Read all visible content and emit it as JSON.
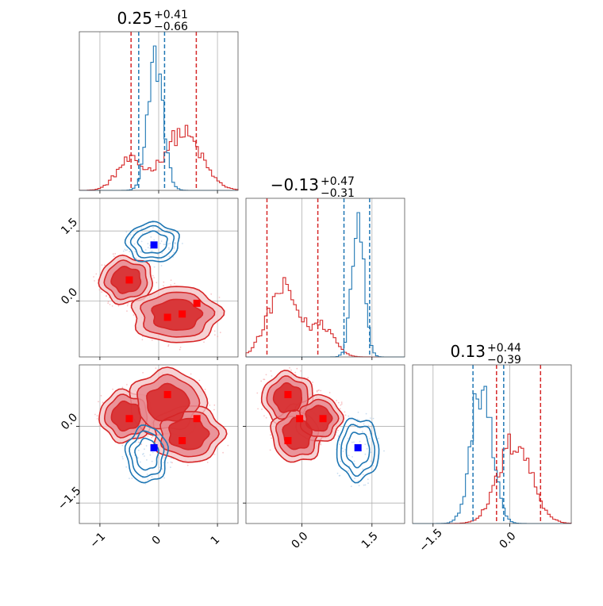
{
  "chart_data": {
    "type": "corner",
    "colors": {
      "model_a": "#d62728",
      "model_b": "#1f77b4",
      "marker_a": "#ff0000",
      "marker_b": "#0000ff"
    },
    "grid": true,
    "titles": [
      {
        "value": "0.25",
        "plus": "+0.41",
        "minus": "−0.66"
      },
      {
        "value": "−0.13",
        "plus": "+0.47",
        "minus": "−0.31"
      },
      {
        "value": "0.13",
        "plus": "+0.44",
        "minus": "−0.39"
      }
    ],
    "param_ranges": [
      [
        -1.35,
        1.35
      ],
      [
        -1.2,
        2.2
      ],
      [
        -1.9,
        1.2
      ]
    ],
    "ticks": {
      "p0": {
        "values": [
          -1,
          0,
          1
        ],
        "labels": [
          "−1",
          "0",
          "1"
        ]
      },
      "p1": {
        "values": [
          0.0,
          1.5
        ],
        "labels": [
          "0.0",
          "1.5"
        ]
      },
      "p2": {
        "values": [
          -1.5,
          0.0
        ],
        "labels": [
          "−1.5",
          "0.0"
        ]
      }
    },
    "hist_dashed_lines": {
      "p0": {
        "model_a": [
          -0.47,
          0.64
        ],
        "model_b": [
          -0.34,
          0.1
        ]
      },
      "p1": {
        "model_a": [
          -0.75,
          0.34
        ],
        "model_b": [
          0.9,
          1.45
        ]
      },
      "p2": {
        "model_a": [
          -0.26,
          0.6
        ],
        "model_b": [
          -0.72,
          -0.12
        ]
      }
    },
    "histograms": {
      "p0": {
        "model_a": {
          "peaks": [
            {
              "mu": -0.5,
              "sd": 0.22,
              "w": 0.28
            },
            {
              "mu": 0.4,
              "sd": 0.32,
              "w": 0.55
            }
          ],
          "height": 0.45
        },
        "model_b": {
          "peaks": [
            {
              "mu": -0.05,
              "sd": 0.13,
              "w": 1.0
            }
          ],
          "height": 1.0
        }
      },
      "p1": {
        "model_a": {
          "peaks": [
            {
              "mu": -0.4,
              "sd": 0.33,
              "w": 0.8
            },
            {
              "mu": 0.45,
              "sd": 0.25,
              "w": 0.35
            }
          ],
          "height": 0.55
        },
        "model_b": {
          "peaks": [
            {
              "mu": 1.2,
              "sd": 0.13,
              "w": 1.0
            }
          ],
          "height": 1.0
        }
      },
      "p2": {
        "model_a": {
          "peaks": [
            {
              "mu": 0.1,
              "sd": 0.32,
              "w": 1.0
            }
          ],
          "height": 0.62
        },
        "model_b": {
          "peaks": [
            {
              "mu": -0.55,
              "sd": 0.2,
              "w": 1.0
            }
          ],
          "height": 0.95
        }
      }
    },
    "markers": {
      "p0_p1": {
        "model_a": [
          [
            -0.5,
            0.45
          ],
          [
            0.15,
            -0.35
          ],
          [
            0.4,
            -0.28
          ],
          [
            0.65,
            -0.05
          ]
        ],
        "model_b": [
          [
            -0.08,
            1.2
          ]
        ]
      },
      "p0_p2": {
        "model_a": [
          [
            -0.5,
            0.15
          ],
          [
            0.15,
            0.62
          ],
          [
            0.4,
            -0.28
          ],
          [
            0.65,
            0.15
          ]
        ],
        "model_b": [
          [
            -0.08,
            -0.42
          ]
        ]
      },
      "p1_p2": {
        "model_a": [
          [
            -0.3,
            0.62
          ],
          [
            -0.3,
            -0.28
          ],
          [
            -0.05,
            0.15
          ],
          [
            0.45,
            0.15
          ]
        ],
        "model_b": [
          [
            1.2,
            -0.42
          ]
        ]
      }
    },
    "blobs": {
      "p0_p1": {
        "model_a": [
          {
            "cx": -0.55,
            "cy": 0.45,
            "rx": 0.45,
            "ry": 0.5
          },
          {
            "cx": 0.3,
            "cy": -0.3,
            "rx": 0.75,
            "ry": 0.6
          }
        ],
        "model_b": [
          {
            "cx": -0.1,
            "cy": 1.25,
            "rx": 0.45,
            "ry": 0.42
          }
        ]
      },
      "p0_p2": {
        "model_a": [
          {
            "cx": -0.55,
            "cy": 0.2,
            "rx": 0.45,
            "ry": 0.5
          },
          {
            "cx": 0.15,
            "cy": 0.45,
            "rx": 0.65,
            "ry": 0.65
          },
          {
            "cx": 0.5,
            "cy": -0.15,
            "rx": 0.6,
            "ry": 0.55
          }
        ],
        "model_b": [
          {
            "cx": -0.2,
            "cy": -0.55,
            "rx": 0.35,
            "ry": 0.55
          }
        ]
      },
      "p1_p2": {
        "model_a": [
          {
            "cx": -0.3,
            "cy": 0.55,
            "rx": 0.55,
            "ry": 0.5
          },
          {
            "cx": -0.1,
            "cy": -0.15,
            "rx": 0.55,
            "ry": 0.55
          },
          {
            "cx": 0.35,
            "cy": 0.15,
            "rx": 0.5,
            "ry": 0.45
          }
        ],
        "model_b": [
          {
            "cx": 1.2,
            "cy": -0.45,
            "rx": 0.45,
            "ry": 0.6
          }
        ]
      }
    }
  }
}
